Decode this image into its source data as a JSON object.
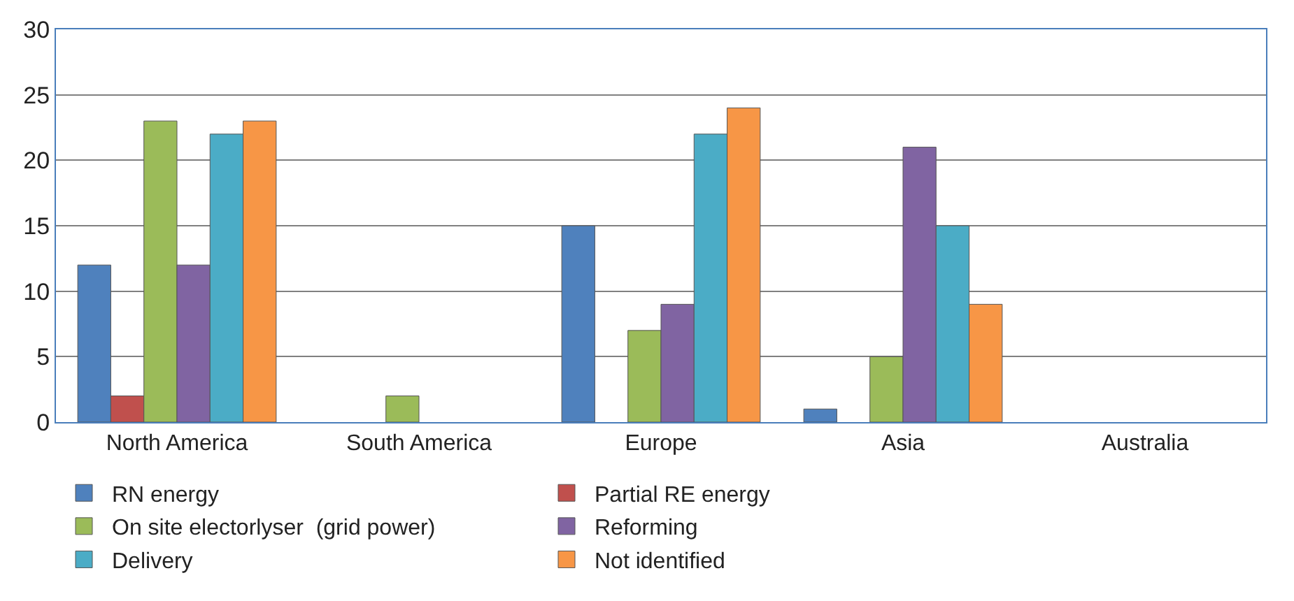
{
  "chart_data": {
    "type": "bar",
    "categories": [
      "North America",
      "South America",
      "Europe",
      "Asia",
      "Australia"
    ],
    "series": [
      {
        "name": "RN energy",
        "color": "#4f81bd",
        "values": [
          12,
          null,
          15,
          1,
          null
        ]
      },
      {
        "name": "Partial RE energy",
        "color": "#c0504d",
        "values": [
          2,
          null,
          null,
          null,
          null
        ]
      },
      {
        "name": "On site electorlyser  (grid power)",
        "color": "#9bbb59",
        "values": [
          23,
          2,
          7,
          5,
          null
        ]
      },
      {
        "name": "Reforming",
        "color": "#8064a2",
        "values": [
          12,
          null,
          9,
          21,
          null
        ]
      },
      {
        "name": "Delivery",
        "color": "#4bacc6",
        "values": [
          22,
          null,
          22,
          15,
          null
        ]
      },
      {
        "name": "Not identified",
        "color": "#f79646",
        "values": [
          23,
          null,
          24,
          9,
          null
        ]
      }
    ],
    "ylim": [
      0,
      30
    ],
    "yticks": [
      0,
      5,
      10,
      15,
      20,
      25,
      30
    ],
    "grid": "y",
    "legend": "bottom"
  }
}
